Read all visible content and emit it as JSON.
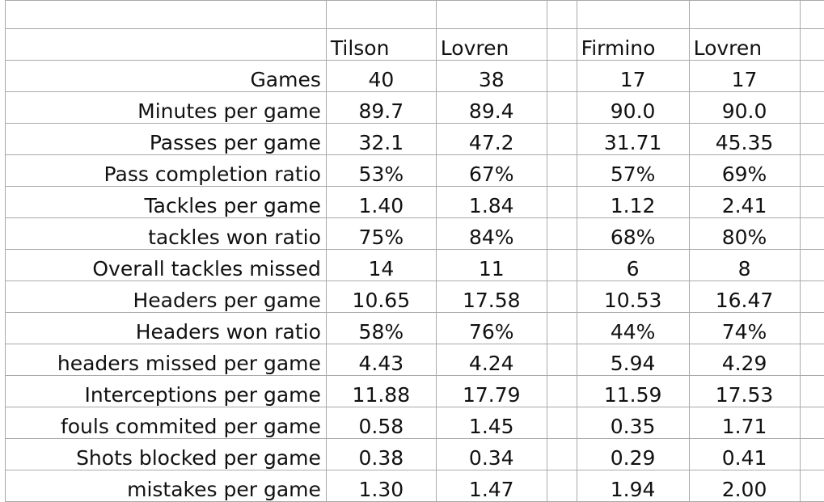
{
  "table": {
    "headers": [
      "Tilson",
      "Lovren",
      "Firmino",
      "Lovren"
    ],
    "rows": [
      {
        "label": "Games",
        "values": [
          "40",
          "38",
          "17",
          "17"
        ]
      },
      {
        "label": "Minutes per game",
        "values": [
          "89.7",
          "89.4",
          "90.0",
          "90.0"
        ]
      },
      {
        "label": "Passes per game",
        "values": [
          "32.1",
          "47.2",
          "31.71",
          "45.35"
        ]
      },
      {
        "label": "Pass completion ratio",
        "values": [
          "53%",
          "67%",
          "57%",
          "69%"
        ]
      },
      {
        "label": "Tackles per game",
        "values": [
          "1.40",
          "1.84",
          "1.12",
          "2.41"
        ]
      },
      {
        "label": "tackles won ratio",
        "values": [
          "75%",
          "84%",
          "68%",
          "80%"
        ]
      },
      {
        "label": "Overall tackles missed",
        "values": [
          "14",
          "11",
          "6",
          "8"
        ]
      },
      {
        "label": "Headers per game",
        "values": [
          "10.65",
          "17.58",
          "10.53",
          "16.47"
        ]
      },
      {
        "label": "Headers won ratio",
        "values": [
          "58%",
          "76%",
          "44%",
          "74%"
        ]
      },
      {
        "label": "headers missed per game",
        "values": [
          "4.43",
          "4.24",
          "5.94",
          "4.29"
        ]
      },
      {
        "label": "Interceptions per game",
        "values": [
          "11.88",
          "17.79",
          "11.59",
          "17.53"
        ]
      },
      {
        "label": "fouls commited per game",
        "values": [
          "0.58",
          "1.45",
          "0.35",
          "1.71"
        ]
      },
      {
        "label": "Shots blocked per game",
        "values": [
          "0.38",
          "0.34",
          "0.29",
          "0.41"
        ]
      },
      {
        "label": "mistakes per game",
        "values": [
          "1.30",
          "1.47",
          "1.94",
          "2.00"
        ]
      }
    ]
  }
}
